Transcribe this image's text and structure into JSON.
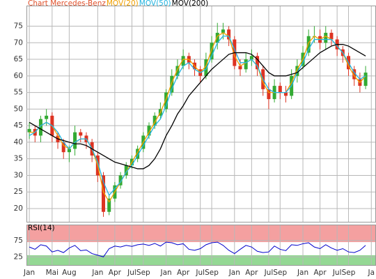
{
  "chart_data": [
    {
      "type": "candlestick",
      "title": "Chart Mercedes-Benz",
      "x": [
        0,
        1,
        2,
        3,
        4,
        5,
        6,
        7,
        8,
        9,
        10,
        11,
        12,
        13,
        14,
        15,
        16,
        17,
        18,
        19,
        20,
        21,
        22,
        23,
        24,
        25,
        26,
        27,
        28,
        29,
        30,
        31,
        32,
        33,
        34,
        35,
        36,
        37,
        38,
        39,
        40,
        41,
        42,
        43,
        44,
        45,
        46,
        47,
        48,
        49,
        50,
        51,
        52,
        53,
        54,
        55,
        56,
        57,
        58,
        59
      ],
      "open": [
        43,
        44,
        42,
        47,
        48,
        42,
        40,
        37,
        38,
        43,
        42,
        40,
        36,
        30,
        19,
        23,
        27,
        30,
        33,
        35,
        38,
        42,
        45,
        48,
        50,
        55,
        60,
        63,
        66,
        64,
        62,
        60,
        65,
        70,
        73,
        74,
        71,
        63,
        62,
        65,
        66,
        62,
        56,
        53,
        57,
        55,
        54,
        60,
        63,
        67,
        72,
        72,
        70,
        73,
        71,
        68,
        66,
        62,
        59,
        57
      ],
      "high": [
        46,
        45,
        48,
        50,
        49,
        43,
        41,
        39,
        45,
        44,
        43,
        41,
        37,
        31,
        24,
        28,
        31,
        34,
        36,
        39,
        43,
        46,
        49,
        52,
        56,
        62,
        65,
        68,
        67,
        65,
        63,
        67,
        72,
        76,
        76,
        75,
        72,
        65,
        67,
        68,
        67,
        63,
        58,
        59,
        58,
        57,
        62,
        65,
        69,
        74,
        75,
        74,
        75,
        74,
        72,
        69,
        67,
        63,
        61,
        63
      ],
      "low": [
        41,
        40,
        40,
        45,
        40,
        38,
        35,
        34,
        36,
        40,
        38,
        34,
        28,
        17.5,
        18,
        22,
        26,
        29,
        32,
        34,
        37,
        41,
        44,
        47,
        49,
        54,
        59,
        62,
        62,
        60,
        58,
        59,
        64,
        68,
        71,
        69,
        62,
        60,
        61,
        63,
        60,
        54,
        50,
        52,
        53,
        52,
        53,
        58,
        62,
        66,
        70,
        68,
        68,
        69,
        66,
        64,
        60,
        57,
        55,
        56
      ],
      "close": [
        44,
        42,
        47,
        48,
        42,
        40,
        37,
        38,
        43,
        42,
        40,
        36,
        30,
        19,
        23,
        27,
        30,
        33,
        35,
        38,
        42,
        45,
        48,
        50,
        55,
        60,
        63,
        66,
        64,
        62,
        60,
        65,
        70,
        73,
        74,
        71,
        63,
        62,
        65,
        66,
        62,
        56,
        53,
        57,
        55,
        54,
        60,
        63,
        67,
        72,
        72,
        70,
        73,
        71,
        68,
        66,
        62,
        59,
        57,
        61
      ],
      "up_color": "#33aa33",
      "down_color": "#dd3322",
      "series": [
        {
          "name": "MOV(20)",
          "color": "#f0a000",
          "values": [
            43,
            43,
            45,
            46,
            45,
            42,
            39,
            38,
            40,
            41,
            41,
            38,
            33,
            25,
            22,
            25,
            28,
            31,
            34,
            37,
            40,
            43,
            46,
            49,
            53,
            58,
            62,
            65,
            65,
            63,
            61,
            63,
            68,
            72,
            73,
            72,
            66,
            63,
            64,
            65,
            63,
            58,
            55,
            55,
            55,
            55,
            58,
            62,
            65,
            70,
            72,
            71,
            72,
            71,
            69,
            67,
            63,
            60,
            58,
            60
          ]
        },
        {
          "name": "MOV(50)",
          "color": "#22b4e0",
          "values": [
            42,
            43,
            45,
            46,
            45,
            43,
            40,
            38,
            40,
            41,
            41,
            38,
            34,
            28,
            24,
            26,
            28,
            31,
            33,
            36,
            39,
            42,
            45,
            47,
            51,
            56,
            60,
            63,
            64,
            62,
            61,
            62,
            66,
            70,
            72,
            72,
            68,
            64,
            64,
            65,
            63,
            59,
            56,
            55,
            55,
            55,
            57,
            61,
            64,
            68,
            71,
            71,
            71,
            71,
            69,
            67,
            64,
            61,
            59,
            60
          ]
        },
        {
          "name": "MOV(200)",
          "color": "#000000",
          "values": [
            46,
            45,
            44,
            43,
            42,
            41,
            40.5,
            40,
            39.5,
            39.5,
            39,
            38,
            37,
            36,
            35,
            34,
            33.5,
            33,
            32.5,
            32,
            32,
            33,
            35,
            38,
            42,
            45,
            48.5,
            51,
            54,
            56,
            58,
            60,
            62,
            63.5,
            65,
            66.5,
            67,
            67,
            67,
            66.5,
            65,
            63,
            61,
            60,
            60,
            60,
            60.5,
            61,
            62.5,
            64,
            65.5,
            67,
            68,
            69,
            69.5,
            69.5,
            69,
            68,
            67,
            66
          ]
        }
      ],
      "xlim": [
        -0.5,
        60.7
      ],
      "xticks": [
        {
          "value": 0,
          "label": "Jan"
        },
        {
          "value": 4,
          "label": "Mai"
        },
        {
          "value": 7,
          "label": "Aug"
        },
        {
          "value": 12,
          "label": "Jan"
        },
        {
          "value": 15,
          "label": "Apr"
        },
        {
          "value": 18,
          "label": "Jul"
        },
        {
          "value": 20,
          "label": "Sep"
        },
        {
          "value": 24,
          "label": "Jan"
        },
        {
          "value": 27,
          "label": "Apr"
        },
        {
          "value": 30,
          "label": "Jul"
        },
        {
          "value": 32,
          "label": "Sep"
        },
        {
          "value": 36,
          "label": "Jan"
        },
        {
          "value": 39,
          "label": "Apr"
        },
        {
          "value": 42,
          "label": "Jul"
        },
        {
          "value": 44,
          "label": "Sep"
        },
        {
          "value": 48,
          "label": "Jan"
        },
        {
          "value": 51,
          "label": "Apr"
        },
        {
          "value": 54,
          "label": "Jul"
        },
        {
          "value": 56,
          "label": "Sep"
        },
        {
          "value": 60,
          "label": "Ja"
        }
      ],
      "ylim": [
        16,
        81
      ],
      "yticks": [
        20,
        25,
        30,
        35,
        40,
        45,
        50,
        55,
        60,
        65,
        70,
        75
      ],
      "grid": true
    },
    {
      "type": "line",
      "series": [
        {
          "name": "RSI(14)",
          "color": "#0000cc",
          "values": [
            55,
            48,
            62,
            58,
            40,
            45,
            38,
            52,
            60,
            44,
            46,
            35,
            30,
            25,
            50,
            58,
            55,
            60,
            57,
            62,
            64,
            60,
            66,
            58,
            70,
            68,
            62,
            65,
            48,
            45,
            50,
            62,
            68,
            70,
            60,
            45,
            35,
            48,
            60,
            55,
            42,
            38,
            40,
            58,
            48,
            44,
            62,
            60,
            65,
            68,
            55,
            50,
            62,
            52,
            45,
            50,
            40,
            38,
            45,
            60
          ]
        }
      ],
      "ylim": [
        0,
        100
      ],
      "yticks": [
        25,
        75
      ],
      "overbought": 70,
      "oversold": 30,
      "overbought_color": "#f4a0a0",
      "oversold_color": "#94d894",
      "grid": true
    }
  ]
}
